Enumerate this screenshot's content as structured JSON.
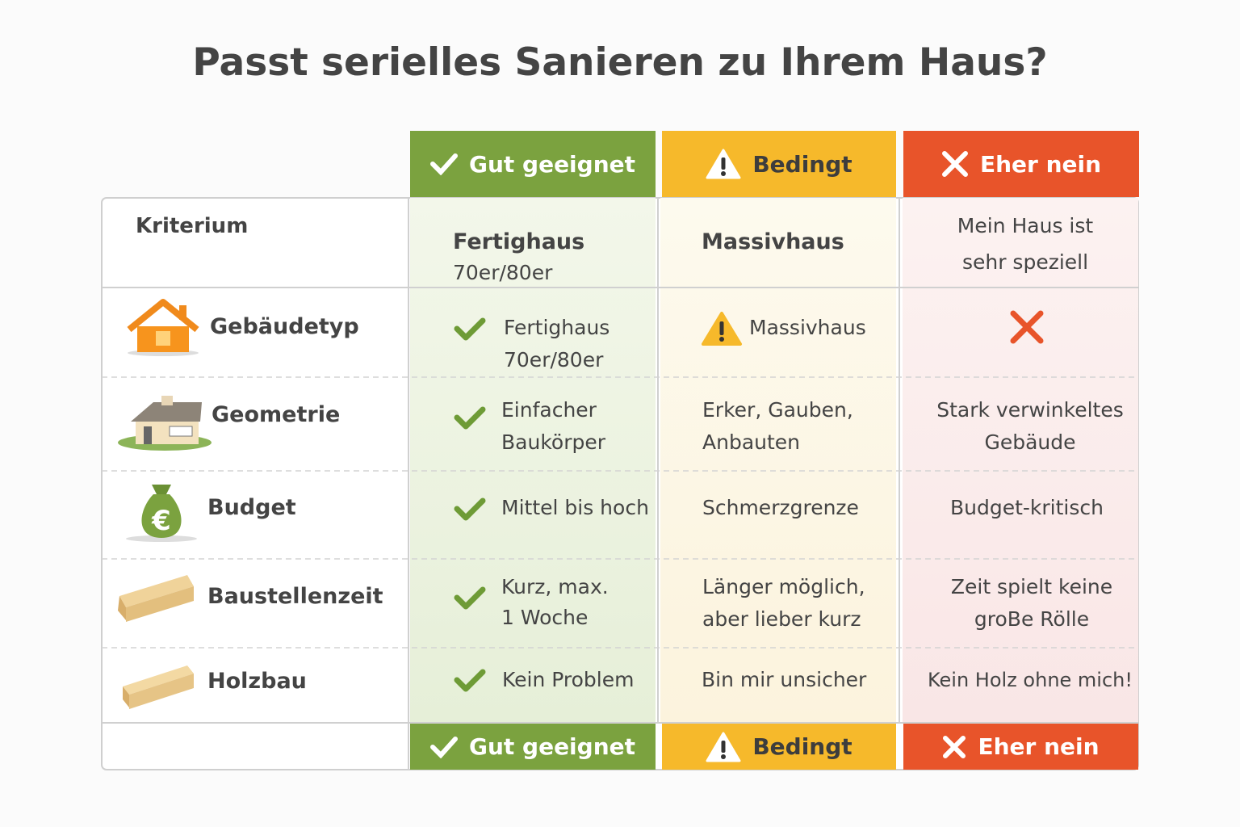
{
  "title": "Passt serielles Sanieren zu Ihrem Haus?",
  "columns": {
    "good": "Gut geeignet",
    "conditional": "Bedingt",
    "no": "Eher nein"
  },
  "subheader": {
    "criterion": "Kriterium",
    "good_title": "Fertighaus",
    "good_sub": "70er/80er",
    "conditional": "Massivhaus",
    "no": "Mein Haus ist\nsehr speziell"
  },
  "rows": [
    {
      "criterion": "Gebäudetyp",
      "good": "Fertighaus\n70er/80er",
      "conditional": "Massivhaus"
    },
    {
      "criterion": "Geometrie",
      "good": "Einfacher\nBaukörper",
      "conditional": "Erker, Gauben,\nAnbauten",
      "no": "Stark verwinkeltes\nGebäude"
    },
    {
      "criterion": "Budget",
      "good": "Mittel bis hoch",
      "conditional": "Schmerzgrenze",
      "no": "Budget-kritisch"
    },
    {
      "criterion": "Baustellenzeit",
      "good": "Kurz, max.\n1 Woche",
      "conditional": "Länger möglich,\naber lieber kurz",
      "no": "Zeit spielt keine\ngroBe Rölle"
    },
    {
      "criterion": "Holzbau",
      "good": "Kein Problem",
      "conditional": "Bin mir unsicher",
      "no": "Kein Holz ohne mich!"
    }
  ],
  "footer": {
    "good": "Gut geeignet",
    "conditional": "Bedingt",
    "no": "Eher nein"
  }
}
